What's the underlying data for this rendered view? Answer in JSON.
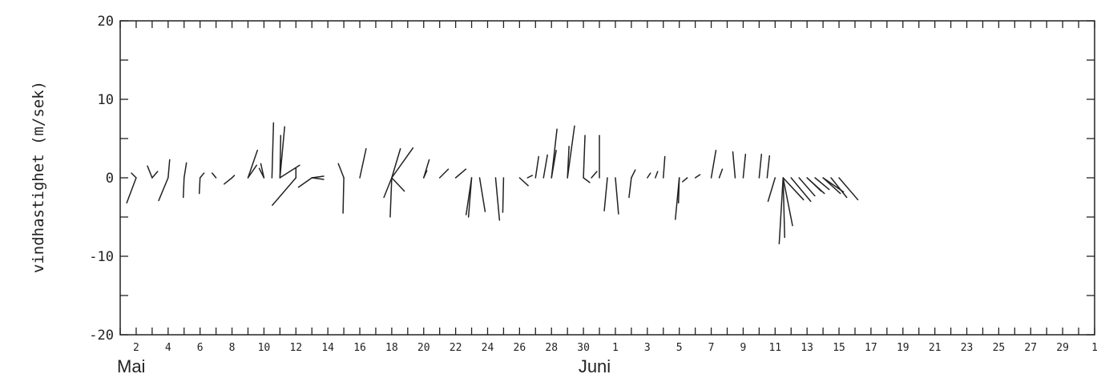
{
  "chart_data": {
    "type": "stick",
    "title": "",
    "xlabel": "",
    "ylabel": "vindhastighet  (m/sek)",
    "ylim": [
      -20,
      20
    ],
    "yticks": [
      20,
      10,
      0,
      -10,
      -20
    ],
    "ytick_labels": [
      "20",
      "10",
      "0",
      "-10",
      "-20"
    ],
    "xlim_days": [
      0,
      61
    ],
    "xtick_labels": [
      "2",
      "4",
      "6",
      "8",
      "10",
      "12",
      "14",
      "16",
      "18",
      "20",
      "22",
      "24",
      "26",
      "28",
      "30",
      "1",
      "3",
      "5",
      "7",
      "9",
      "11",
      "13",
      "15",
      "17",
      "19",
      "21",
      "23",
      "25",
      "27",
      "29",
      "1"
    ],
    "months": [
      "Mai",
      "Juni"
    ],
    "grid": false,
    "sticks": [
      {
        "x": 1.0,
        "u": -1.2,
        "v": -3.2
      },
      {
        "x": 1.0,
        "u": -0.6,
        "v": 0.6
      },
      {
        "x": 2.0,
        "u": -0.6,
        "v": 1.5
      },
      {
        "x": 2.0,
        "u": 0.7,
        "v": 0.8
      },
      {
        "x": 3.0,
        "u": -1.2,
        "v": -2.9
      },
      {
        "x": 3.0,
        "u": 0.2,
        "v": 2.3
      },
      {
        "x": 4.0,
        "u": -0.1,
        "v": -2.5
      },
      {
        "x": 4.0,
        "u": 0.3,
        "v": 1.9
      },
      {
        "x": 5.0,
        "u": -0.1,
        "v": -2.0
      },
      {
        "x": 5.0,
        "u": 0.5,
        "v": 0.6
      },
      {
        "x": 6.0,
        "u": -0.5,
        "v": 0.6
      },
      {
        "x": 7.0,
        "u": -1.0,
        "v": -0.8
      },
      {
        "x": 7.0,
        "u": 0.3,
        "v": 0.3
      },
      {
        "x": 8.0,
        "u": 1.1,
        "v": 1.6
      },
      {
        "x": 8.0,
        "u": 1.2,
        "v": 3.5
      },
      {
        "x": 9.0,
        "u": -0.6,
        "v": 1.2
      },
      {
        "x": 9.0,
        "u": -0.4,
        "v": 1.8
      },
      {
        "x": 9.5,
        "u": 0.2,
        "v": 7.0
      },
      {
        "x": 10.0,
        "u": 0.1,
        "v": 5.4
      },
      {
        "x": 10.0,
        "u": 0.6,
        "v": 6.5
      },
      {
        "x": 10.0,
        "u": 2.5,
        "v": 1.6
      },
      {
        "x": 11.0,
        "u": 0.0,
        "v": 1.2
      },
      {
        "x": 11.0,
        "u": -3.0,
        "v": -3.5
      },
      {
        "x": 12.0,
        "u": 1.5,
        "v": -0.2
      },
      {
        "x": 12.0,
        "u": 1.5,
        "v": 0.2
      },
      {
        "x": 12.0,
        "u": -1.7,
        "v": -1.2
      },
      {
        "x": 14.0,
        "u": -0.1,
        "v": -4.5
      },
      {
        "x": 14.0,
        "u": -0.7,
        "v": 1.8
      },
      {
        "x": 15.0,
        "u": 0.8,
        "v": 3.7
      },
      {
        "x": 17.0,
        "u": 2.7,
        "v": 3.8
      },
      {
        "x": 17.0,
        "u": -0.2,
        "v": -5.0
      },
      {
        "x": 17.0,
        "u": 1.6,
        "v": -1.7
      },
      {
        "x": 17.0,
        "u": 1.1,
        "v": 3.7
      },
      {
        "x": 17.0,
        "u": -1.0,
        "v": -2.5
      },
      {
        "x": 19.0,
        "u": 0.4,
        "v": 0.9
      },
      {
        "x": 19.0,
        "u": 0.7,
        "v": 2.3
      },
      {
        "x": 20.0,
        "u": 1.1,
        "v": 1.1
      },
      {
        "x": 21.0,
        "u": 1.3,
        "v": 1.1
      },
      {
        "x": 22.0,
        "u": -0.7,
        "v": -4.7
      },
      {
        "x": 22.0,
        "u": -0.4,
        "v": -5.0
      },
      {
        "x": 22.5,
        "u": 0.7,
        "v": -4.3
      },
      {
        "x": 23.5,
        "u": 0.5,
        "v": -5.4
      },
      {
        "x": 24.0,
        "u": -0.1,
        "v": -4.4
      },
      {
        "x": 25.0,
        "u": 1.1,
        "v": -1.0
      },
      {
        "x": 25.5,
        "u": 0.6,
        "v": 0.3
      },
      {
        "x": 26.0,
        "u": 0.4,
        "v": 2.7
      },
      {
        "x": 26.5,
        "u": 0.5,
        "v": 2.9
      },
      {
        "x": 27.0,
        "u": 0.6,
        "v": 3.5
      },
      {
        "x": 27.0,
        "u": 0.7,
        "v": 6.2
      },
      {
        "x": 28.0,
        "u": 0.2,
        "v": 4.0
      },
      {
        "x": 28.0,
        "u": 0.9,
        "v": 6.6
      },
      {
        "x": 29.0,
        "u": 0.2,
        "v": 5.4
      },
      {
        "x": 29.0,
        "u": 0.8,
        "v": -0.6
      },
      {
        "x": 29.5,
        "u": 0.7,
        "v": 0.8
      },
      {
        "x": 30.0,
        "u": 0.0,
        "v": 5.4
      },
      {
        "x": 30.5,
        "u": -0.4,
        "v": -4.2
      },
      {
        "x": 31.0,
        "u": 0.4,
        "v": -4.6
      },
      {
        "x": 32.0,
        "u": -0.3,
        "v": -2.5
      },
      {
        "x": 32.0,
        "u": 0.5,
        "v": 1.0
      },
      {
        "x": 33.0,
        "u": 0.4,
        "v": 0.6
      },
      {
        "x": 33.5,
        "u": 0.3,
        "v": 0.8
      },
      {
        "x": 34.0,
        "u": 0.2,
        "v": 2.7
      },
      {
        "x": 35.0,
        "u": -0.1,
        "v": -3.2
      },
      {
        "x": 35.0,
        "u": -0.5,
        "v": -5.3
      },
      {
        "x": 35.5,
        "u": -0.6,
        "v": -0.5
      },
      {
        "x": 36.0,
        "u": 0.6,
        "v": 0.4
      },
      {
        "x": 37.0,
        "u": 0.6,
        "v": 3.5
      },
      {
        "x": 37.5,
        "u": 0.4,
        "v": 1.1
      },
      {
        "x": 38.5,
        "u": -0.3,
        "v": 3.3
      },
      {
        "x": 39.0,
        "u": 0.3,
        "v": 3.0
      },
      {
        "x": 40.0,
        "u": 0.3,
        "v": 3.0
      },
      {
        "x": 40.5,
        "u": 0.3,
        "v": 2.8
      },
      {
        "x": 41.0,
        "u": -0.9,
        "v": -3.0
      },
      {
        "x": 41.5,
        "u": -0.5,
        "v": -8.4
      },
      {
        "x": 41.5,
        "u": 0.2,
        "v": -7.6
      },
      {
        "x": 41.5,
        "u": 1.2,
        "v": -6.1
      },
      {
        "x": 41.5,
        "u": 2.6,
        "v": -2.8
      },
      {
        "x": 42.0,
        "u": 2.5,
        "v": -3.0
      },
      {
        "x": 42.5,
        "u": 2.0,
        "v": -2.3
      },
      {
        "x": 43.0,
        "u": 2.2,
        "v": -2.0
      },
      {
        "x": 43.0,
        "u": 1.8,
        "v": -1.7
      },
      {
        "x": 43.5,
        "u": 1.8,
        "v": -1.5
      },
      {
        "x": 44.0,
        "u": 2.6,
        "v": -1.8
      },
      {
        "x": 44.0,
        "u": 2.2,
        "v": -2.0
      },
      {
        "x": 44.5,
        "u": 2.0,
        "v": -2.5
      },
      {
        "x": 45.0,
        "u": 2.4,
        "v": -2.8
      }
    ]
  }
}
